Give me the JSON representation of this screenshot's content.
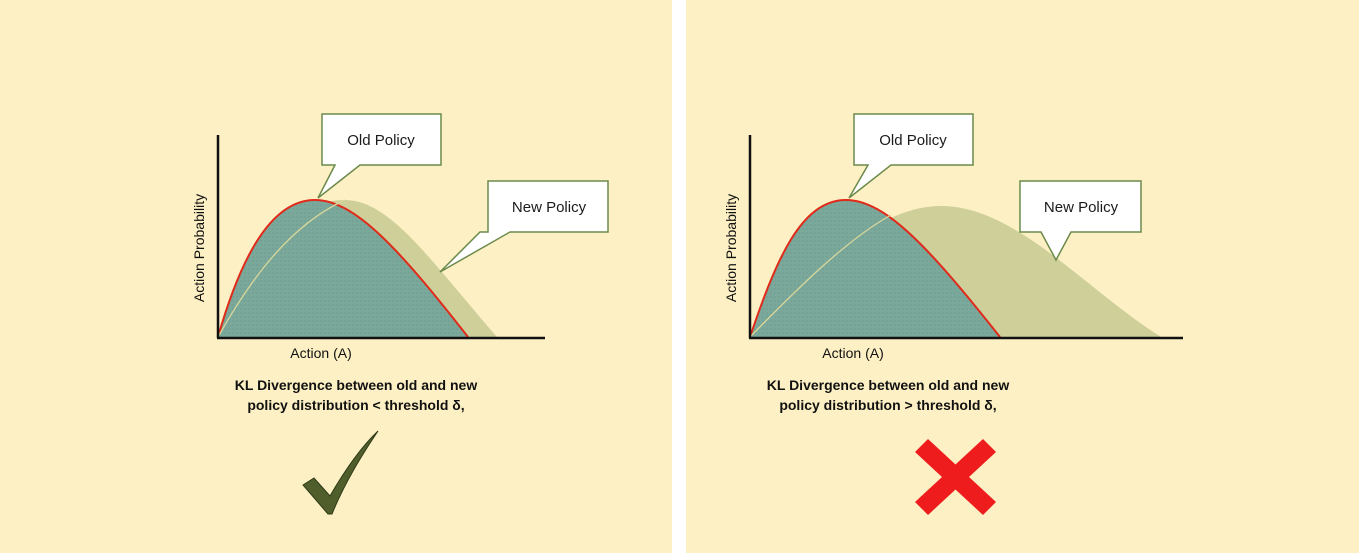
{
  "colors": {
    "background": "#fdf0c4",
    "divider": "#ffffff",
    "old_policy_fill": "#7aa89a",
    "old_policy_outline": "#e02a1a",
    "new_policy_fill": "#cfcf9a",
    "callout_border": "#6b8a4a",
    "check": "#4f5e2a",
    "cross": "#ee1c1c"
  },
  "left_panel": {
    "old_policy_label": "Old Policy",
    "new_policy_label": "New Policy",
    "y_axis_label": "Action Probability",
    "x_axis_label": "Action (A)",
    "caption_line1": "KL Divergence between old and new",
    "caption_line2": "policy distribution < threshold δ,",
    "result_icon": "check-mark-icon"
  },
  "right_panel": {
    "old_policy_label": "Old Policy",
    "new_policy_label": "New Policy",
    "y_axis_label": "Action Probability",
    "x_axis_label": "Action (A)",
    "caption_line1": "KL Divergence between old and new",
    "caption_line2": "policy distribution > threshold δ,",
    "result_icon": "cross-mark-icon"
  }
}
